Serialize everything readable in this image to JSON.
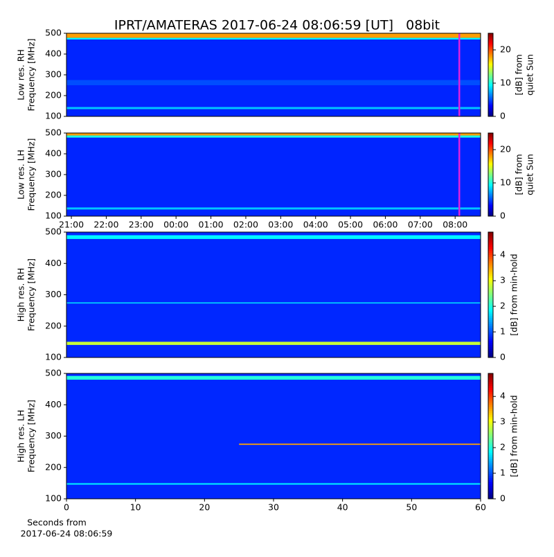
{
  "chart_data": [
    {
      "type": "heatmap",
      "title": "IPRT/AMATERAS 2017-06-24 08:06:59 [UT]   08bit",
      "ylabel": [
        "Low res. RH",
        "Frequency [MHz]"
      ],
      "xlim": [
        20.86,
        32.73
      ],
      "ylim": [
        100,
        500
      ],
      "yticks": [
        100,
        200,
        300,
        400,
        500
      ],
      "clim": [
        0,
        25
      ],
      "cticks": [
        0,
        10,
        20
      ],
      "clabel": [
        "[dB] from",
        "quiet Sun"
      ],
      "colormap": "jet",
      "background": 4,
      "bands": [
        {
          "y": [
            478,
            500
          ],
          "level": 18
        },
        {
          "y": [
            470,
            478
          ],
          "level": 9
        },
        {
          "y": [
            135,
            145
          ],
          "level": 8
        },
        {
          "y": [
            250,
            275
          ],
          "level": 5
        }
      ],
      "cursor": 32.12
    },
    {
      "type": "heatmap",
      "ylabel": [
        "Low res. LH",
        "Frequency [MHz]"
      ],
      "xlim": [
        20.86,
        32.73
      ],
      "xticks": [
        {
          "value": 21,
          "label": "21:00"
        },
        {
          "value": 22,
          "label": "22:00"
        },
        {
          "value": 23,
          "label": "23:00"
        },
        {
          "value": 24,
          "label": "00:00"
        },
        {
          "value": 25,
          "label": "01:00"
        },
        {
          "value": 26,
          "label": "02:00"
        },
        {
          "value": 27,
          "label": "03:00"
        },
        {
          "value": 28,
          "label": "04:00"
        },
        {
          "value": 29,
          "label": "05:00"
        },
        {
          "value": 30,
          "label": "06:00"
        },
        {
          "value": 31,
          "label": "07:00"
        },
        {
          "value": 32,
          "label": "08:00"
        }
      ],
      "ylim": [
        100,
        500
      ],
      "yticks": [
        100,
        200,
        300,
        400,
        500
      ],
      "clim": [
        0,
        25
      ],
      "cticks": [
        0,
        10,
        20
      ],
      "clabel": [
        "[dB] from",
        "quiet Sun"
      ],
      "colormap": "jet",
      "background": 4,
      "bands": [
        {
          "y": [
            488,
            500
          ],
          "level": 18
        },
        {
          "y": [
            478,
            488
          ],
          "level": 10
        },
        {
          "y": [
            132,
            142
          ],
          "level": 8
        }
      ],
      "cursor": 32.12
    },
    {
      "type": "heatmap",
      "ylabel": [
        "High res. RH",
        "Frequency [MHz]"
      ],
      "xlim": [
        0,
        60
      ],
      "ylim": [
        100,
        500
      ],
      "yticks": [
        100,
        200,
        300,
        400,
        500
      ],
      "clim": [
        0,
        4.9
      ],
      "cticks": [
        0,
        1,
        2,
        3,
        4
      ],
      "clabel": [
        "[dB] from min-hold"
      ],
      "colormap": "jet",
      "background": 0.8,
      "bands": [
        {
          "y": [
            140,
            150
          ],
          "level": 2.8
        },
        {
          "y": [
            478,
            490
          ],
          "level": 1.8
        },
        {
          "y": [
            272,
            276
          ],
          "level": 1.6
        }
      ]
    },
    {
      "type": "heatmap",
      "ylabel": [
        "High res. LH",
        "Frequency [MHz]"
      ],
      "xlim": [
        0,
        60
      ],
      "xticks": [
        0,
        10,
        20,
        30,
        40,
        50,
        60
      ],
      "xlabel": [
        "Seconds from",
        "2017-06-24 08:06:59"
      ],
      "ylim": [
        100,
        500
      ],
      "yticks": [
        100,
        200,
        300,
        400,
        500
      ],
      "clim": [
        0,
        4.9
      ],
      "cticks": [
        0,
        1,
        2,
        3,
        4
      ],
      "clabel": [
        "[dB] from min-hold"
      ],
      "colormap": "jet",
      "background": 0.8,
      "bands": [
        {
          "y": [
            480,
            492
          ],
          "level": 2
        },
        {
          "y": [
            272,
            276
          ],
          "level": 3.5,
          "x": [
            25,
            60
          ]
        },
        {
          "y": [
            145,
            150
          ],
          "level": 1.7
        }
      ]
    }
  ]
}
